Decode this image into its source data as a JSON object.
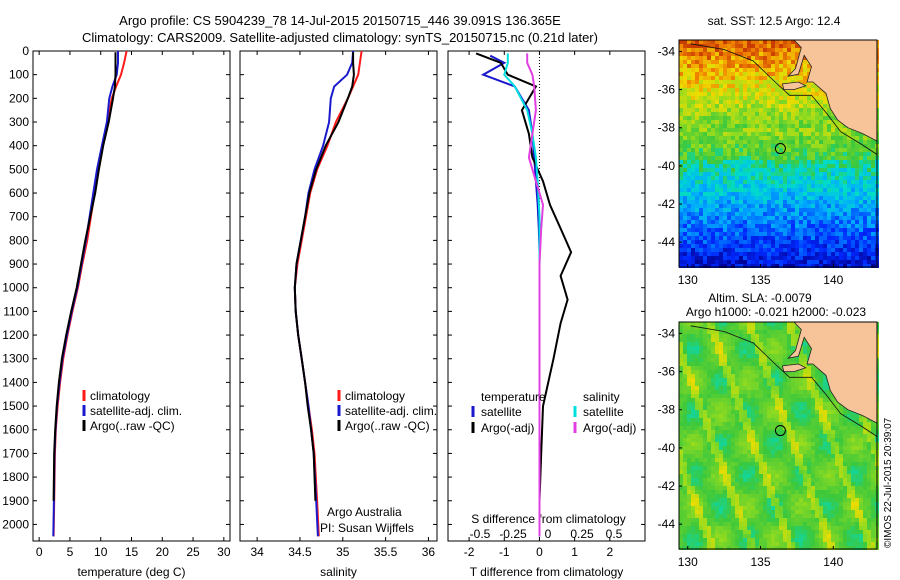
{
  "header": {
    "line1": "Argo profile: CS 5904239_78 14-Jul-2015 20150715_446 39.091S 136.365E",
    "line2": "Climatology: CARS2009. Satellite-adjusted climatology: synTS_20150715.nc (0.21d later)"
  },
  "credit": "©IMOS 22-Jul-2015 20:39:07",
  "colors": {
    "climatology": "#ff1a1a",
    "satellite": "#1a1acc",
    "argo": "#000000",
    "sat_salinity": "#00e0e0",
    "argo_salinity": "#e040e0"
  },
  "chart_data": [
    {
      "type": "line",
      "xlabel": "temperature (deg C)",
      "ylabel": "",
      "xlim": [
        -1,
        31
      ],
      "ylim": [
        2070,
        0
      ],
      "xticks": [
        0,
        5,
        10,
        15,
        20,
        25,
        30
      ],
      "yticks": [
        0,
        100,
        200,
        300,
        400,
        500,
        600,
        700,
        800,
        900,
        1000,
        1100,
        1200,
        1300,
        1400,
        1500,
        1600,
        1700,
        1800,
        1900,
        2000
      ],
      "legend": {
        "position": "center-right",
        "entries": [
          "climatology",
          "satellite-adj. clim.",
          "Argo(..raw -QC)"
        ]
      },
      "series": [
        {
          "name": "climatology",
          "color": "#ff1a1a",
          "x": [
            14.2,
            13.8,
            13.3,
            12.5,
            11.8,
            11.1,
            10.3,
            9.6,
            9.0,
            8.4,
            7.8,
            7.0,
            6.3,
            5.4,
            4.6,
            3.9,
            3.4,
            3.0,
            2.7,
            2.55,
            2.45,
            2.35
          ],
          "y": [
            0,
            50,
            100,
            150,
            200,
            300,
            400,
            500,
            600,
            700,
            800,
            900,
            1000,
            1100,
            1200,
            1300,
            1400,
            1500,
            1600,
            1700,
            1900,
            2050
          ]
        },
        {
          "name": "satellite-adj. clim.",
          "color": "#1a1acc",
          "x": [
            12.8,
            12.8,
            12.6,
            11.9,
            11.4,
            11.0,
            10.2,
            9.4,
            8.8,
            8.2,
            7.6,
            6.9,
            6.2,
            5.3,
            4.5,
            3.8,
            3.3,
            2.9,
            2.65,
            2.5,
            2.4,
            2.3
          ],
          "y": [
            0,
            50,
            100,
            150,
            200,
            300,
            400,
            500,
            600,
            700,
            800,
            900,
            1000,
            1100,
            1200,
            1300,
            1400,
            1500,
            1600,
            1700,
            1900,
            2050
          ]
        },
        {
          "name": "Argo(..raw -QC)",
          "color": "#000000",
          "x": [
            12.4,
            12.4,
            12.4,
            12.3,
            12.0,
            11.3,
            10.4,
            9.7,
            9.1,
            8.3,
            7.5,
            6.8,
            6.1,
            5.2,
            4.4,
            3.7,
            3.2,
            2.85,
            2.6,
            2.45,
            2.35
          ],
          "y": [
            5,
            50,
            100,
            150,
            200,
            300,
            400,
            500,
            600,
            700,
            800,
            900,
            1000,
            1100,
            1200,
            1300,
            1400,
            1500,
            1600,
            1700,
            1900
          ]
        }
      ]
    },
    {
      "type": "line",
      "xlabel": "salinity",
      "ylabel": "",
      "xlim": [
        33.8,
        36.1
      ],
      "ylim": [
        2070,
        0
      ],
      "xticks": [
        34,
        34.5,
        35,
        35.5,
        36
      ],
      "legend": {
        "position": "center-right",
        "entries": [
          "climatology",
          "satellite-adj. clim.",
          "Argo(..raw -QC)"
        ]
      },
      "annotations": [
        "Argo Australia",
        "PI: Susan Wijffels"
      ],
      "series": [
        {
          "name": "climatology",
          "color": "#ff1a1a",
          "x": [
            35.22,
            35.2,
            35.18,
            35.12,
            35.06,
            34.92,
            34.82,
            34.7,
            34.62,
            34.57,
            34.52,
            34.47,
            34.44,
            34.45,
            34.48,
            34.52,
            34.56,
            34.6,
            34.64,
            34.67,
            34.7,
            34.72
          ],
          "y": [
            0,
            50,
            100,
            150,
            200,
            300,
            400,
            500,
            600,
            700,
            800,
            900,
            1000,
            1100,
            1200,
            1300,
            1400,
            1500,
            1600,
            1700,
            1900,
            2050
          ]
        },
        {
          "name": "satellite-adj. clim.",
          "color": "#1a1acc",
          "x": [
            35.12,
            35.11,
            35.05,
            34.9,
            34.86,
            34.84,
            34.77,
            34.67,
            34.6,
            34.56,
            34.51,
            34.46,
            34.44,
            34.45,
            34.48,
            34.52,
            34.56,
            34.6,
            34.63,
            34.66,
            34.69,
            34.71
          ],
          "y": [
            0,
            50,
            100,
            150,
            200,
            300,
            400,
            500,
            600,
            700,
            800,
            900,
            1000,
            1100,
            1200,
            1300,
            1400,
            1500,
            1600,
            1700,
            1900,
            2050
          ]
        },
        {
          "name": "Argo(..raw -QC)",
          "color": "#000000",
          "x": [
            35.12,
            35.12,
            35.13,
            35.11,
            35.06,
            34.95,
            34.8,
            34.69,
            34.61,
            34.56,
            34.51,
            34.46,
            34.44,
            34.45,
            34.48,
            34.52,
            34.56,
            34.59,
            34.63,
            34.66,
            34.68
          ],
          "y": [
            5,
            50,
            100,
            150,
            200,
            300,
            400,
            500,
            600,
            700,
            800,
            900,
            1000,
            1100,
            1200,
            1300,
            1400,
            1500,
            1600,
            1700,
            1900
          ]
        }
      ]
    },
    {
      "type": "line",
      "xlabel": "T difference from climatology",
      "xlabel_top": "S difference from climatology",
      "xlim": [
        -2.6,
        3.0
      ],
      "ylim": [
        2070,
        0
      ],
      "xticks": [
        -2,
        -1,
        0,
        1,
        2
      ],
      "xticks_top": [
        "-0.5",
        "-0.25",
        "0",
        "0.25",
        "0.5"
      ],
      "legend": {
        "position": "center",
        "temperature_header": "temperature",
        "salinity_header": "salinity",
        "entries": [
          "satellite",
          "Argo(-adj)",
          "satellite",
          "Argo(-adj)"
        ]
      },
      "series": [
        {
          "name": "temperature satellite",
          "color": "#1a1acc",
          "x": [
            -1.4,
            -1.0,
            -1.6,
            -0.7,
            -0.3,
            -0.2,
            -0.15,
            -0.1,
            -0.05,
            -0.02,
            0.0,
            0.0,
            0.0,
            0.0,
            0.0,
            0.0,
            0.0,
            0.0,
            0.0
          ],
          "y": [
            20,
            50,
            100,
            150,
            250,
            350,
            450,
            550,
            650,
            750,
            850,
            950,
            1100,
            1300,
            1500,
            1700,
            1850,
            1950,
            2050
          ]
        },
        {
          "name": "temperature Argo(-adj)",
          "color": "#000000",
          "x": [
            -1.8,
            -1.1,
            -0.9,
            -0.1,
            -0.5,
            -0.3,
            -0.2,
            0.1,
            0.3,
            0.6,
            0.9,
            0.6,
            0.8,
            0.6,
            0.4,
            0.1,
            0.05,
            0.0,
            0.0
          ],
          "y": [
            10,
            50,
            100,
            150,
            250,
            350,
            450,
            550,
            650,
            750,
            850,
            950,
            1050,
            1150,
            1300,
            1500,
            1700,
            1900,
            2050
          ]
        },
        {
          "name": "salinity satellite",
          "color": "#00e0e0",
          "x": [
            -0.9,
            -0.9,
            -1.0,
            -0.7,
            -0.35,
            -0.2,
            -0.1,
            -0.05,
            0.0,
            0.0,
            0.0,
            0.0,
            0.0,
            0.0
          ],
          "y": [
            10,
            50,
            100,
            150,
            250,
            350,
            450,
            550,
            700,
            900,
            1200,
            1500,
            1800,
            2050
          ]
        },
        {
          "name": "salinity Argo(-adj)",
          "color": "#e040e0",
          "x": [
            -0.35,
            -0.35,
            -0.2,
            -0.15,
            -0.1,
            -0.2,
            -0.3,
            -0.1,
            0.1,
            0.05,
            0.0,
            0.0,
            0.0,
            0.0
          ],
          "y": [
            10,
            50,
            100,
            150,
            250,
            350,
            450,
            550,
            650,
            750,
            900,
            1200,
            1600,
            2050
          ]
        }
      ]
    }
  ],
  "maps": [
    {
      "title": "sat. SST: 12.5 Argo: 12.4",
      "title2": "",
      "xticks": [
        "130",
        "135",
        "140"
      ],
      "yticks": [
        "-34",
        "-36",
        "-38",
        "-40",
        "-42",
        "-44"
      ],
      "type": "sst"
    },
    {
      "title": "Altim. SLA: -0.0079",
      "title2": "Argo h1000: -0.021 h2000: -0.023",
      "xticks": [
        "130",
        "135",
        "140"
      ],
      "yticks": [
        "-34",
        "-36",
        "-38",
        "-40",
        "-42",
        "-44"
      ],
      "type": "sla"
    }
  ]
}
